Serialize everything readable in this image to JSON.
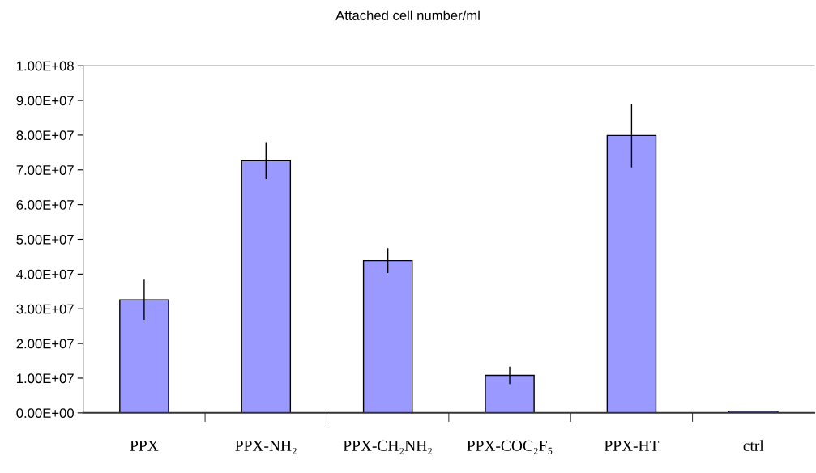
{
  "chart_data": {
    "type": "bar",
    "title": "Attached cell number/ml",
    "categories": [
      "PPX",
      "PPX-NH₂",
      "PPX-CH₂NH₂",
      "PPX-COC₂F₅",
      "PPX-HT",
      "ctrl"
    ],
    "values": [
      32600000.0,
      72700000.0,
      43900000.0,
      10800000.0,
      79900000.0,
      500000.0
    ],
    "errors": [
      5800000.0,
      5300000.0,
      3600000.0,
      2500000.0,
      9200000.0,
      null
    ],
    "color": "#9999ff",
    "ylim": [
      0,
      100000000.0
    ],
    "yticks": [
      {
        "value": 0,
        "label": "0.00E+00"
      },
      {
        "value": 10000000.0,
        "label": "1.00E+07"
      },
      {
        "value": 20000000.0,
        "label": "2.00E+07"
      },
      {
        "value": 30000000.0,
        "label": "3.00E+07"
      },
      {
        "value": 40000000.0,
        "label": "4.00E+07"
      },
      {
        "value": 50000000.0,
        "label": "5.00E+07"
      },
      {
        "value": 60000000.0,
        "label": "6.00E+07"
      },
      {
        "value": 70000000.0,
        "label": "7.00E+07"
      },
      {
        "value": 80000000.0,
        "label": "8.00E+07"
      },
      {
        "value": 90000000.0,
        "label": "9.00E+07"
      },
      {
        "value": 100000000.0,
        "label": "1.00E+08"
      }
    ],
    "grid": false,
    "legend": false
  }
}
